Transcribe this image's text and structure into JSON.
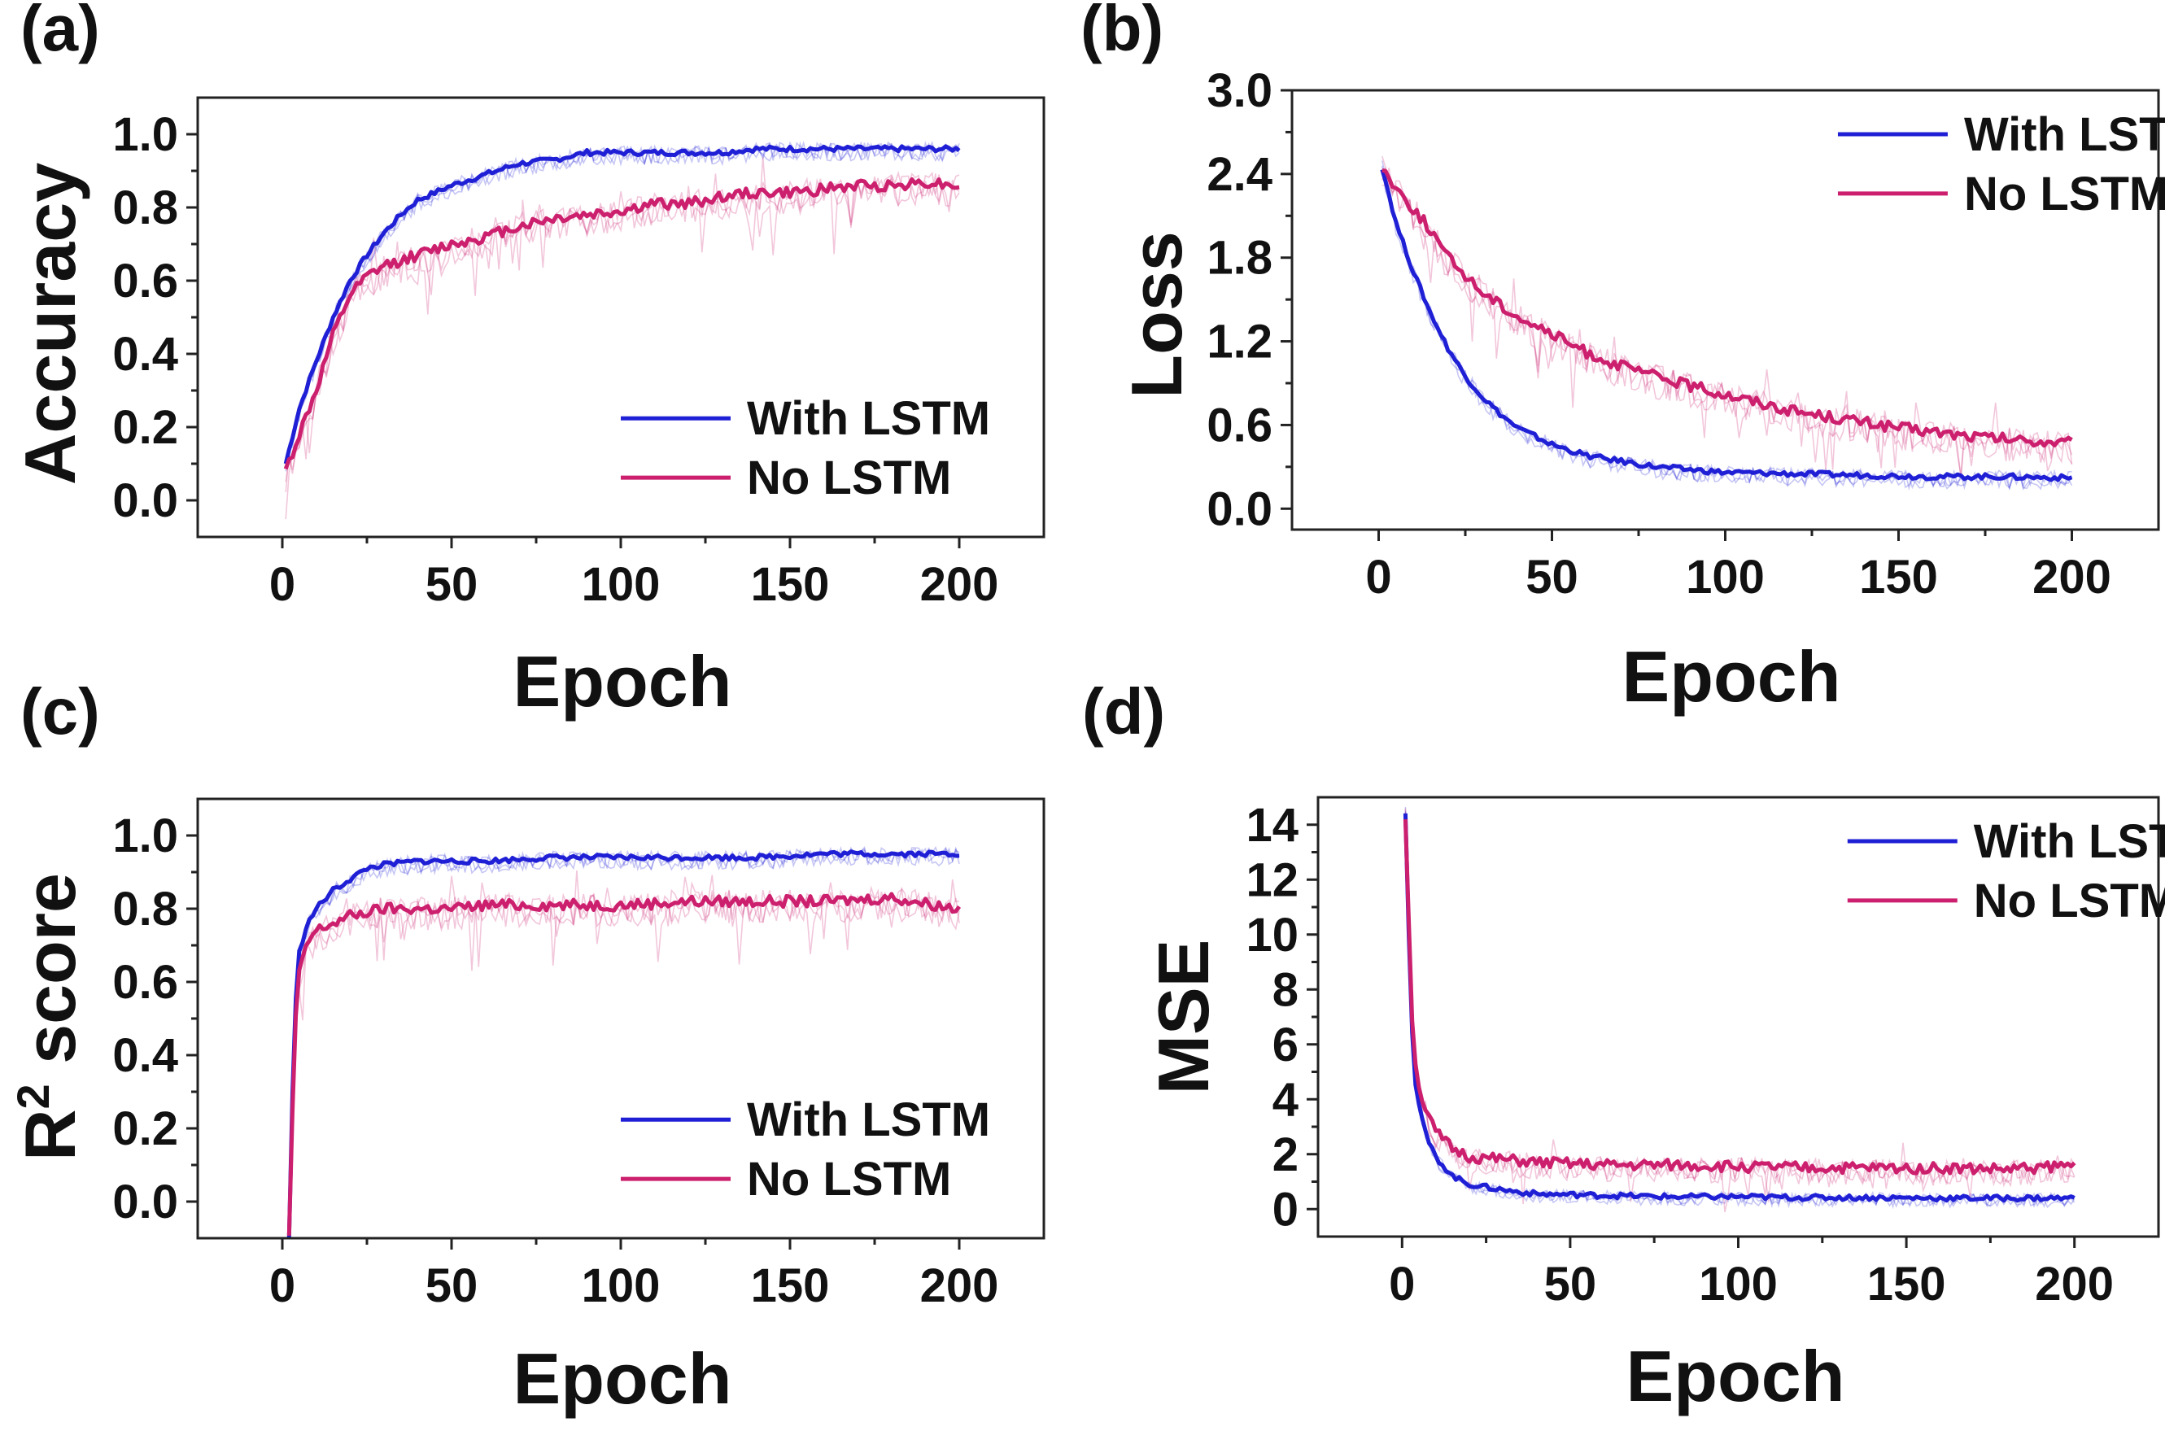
{
  "figure": {
    "colors": {
      "with_lstm": "#1f1fd6",
      "no_lstm": "#cc1f6e",
      "axis": "#222222"
    }
  },
  "chart_data": [
    {
      "id": "a",
      "type": "line",
      "panel_label": "(a)",
      "xlabel": "Epoch",
      "ylabel": "Accuracy",
      "xlim": [
        -25,
        225
      ],
      "ylim": [
        -0.1,
        1.1
      ],
      "xticks": [
        0,
        50,
        100,
        150,
        200
      ],
      "xtick_labels": [
        "0",
        "50",
        "100",
        "150",
        "200"
      ],
      "yticks": [
        0.0,
        0.2,
        0.4,
        0.6,
        0.8,
        1.0
      ],
      "ytick_labels": [
        "0.0",
        "0.2",
        "0.4",
        "0.6",
        "0.8",
        "1.0"
      ],
      "legend_position": "bottom-right",
      "series": [
        {
          "name": "With LSTM",
          "color": "#1f1fd6",
          "x": [
            1,
            5,
            10,
            15,
            20,
            25,
            30,
            35,
            40,
            50,
            60,
            70,
            80,
            90,
            100,
            110,
            120,
            130,
            140,
            150,
            160,
            170,
            180,
            190,
            200
          ],
          "y": [
            0.1,
            0.25,
            0.38,
            0.5,
            0.6,
            0.67,
            0.73,
            0.78,
            0.82,
            0.86,
            0.89,
            0.92,
            0.93,
            0.95,
            0.95,
            0.95,
            0.95,
            0.95,
            0.96,
            0.96,
            0.96,
            0.96,
            0.96,
            0.96,
            0.96
          ]
        },
        {
          "name": "No LSTM",
          "color": "#cc1f6e",
          "x": [
            1,
            5,
            10,
            15,
            20,
            25,
            30,
            40,
            50,
            60,
            70,
            80,
            90,
            100,
            110,
            120,
            130,
            140,
            150,
            160,
            170,
            180,
            190,
            200
          ],
          "y": [
            0.08,
            0.18,
            0.3,
            0.45,
            0.56,
            0.61,
            0.64,
            0.67,
            0.7,
            0.72,
            0.75,
            0.77,
            0.78,
            0.79,
            0.81,
            0.81,
            0.83,
            0.84,
            0.84,
            0.85,
            0.86,
            0.86,
            0.87,
            0.86
          ]
        }
      ]
    },
    {
      "id": "b",
      "type": "line",
      "panel_label": "(b)",
      "xlabel": "Epoch",
      "ylabel": "Loss",
      "xlim": [
        -25,
        225
      ],
      "ylim": [
        -0.15,
        3.0
      ],
      "xticks": [
        0,
        50,
        100,
        150,
        200
      ],
      "xtick_labels": [
        "0",
        "50",
        "100",
        "150",
        "200"
      ],
      "yticks": [
        0.0,
        0.6,
        1.2,
        1.8,
        2.4,
        3.0
      ],
      "ytick_labels": [
        "0.0",
        "0.6",
        "1.2",
        "1.8",
        "2.4",
        "3.0"
      ],
      "legend_position": "top-right",
      "series": [
        {
          "name": "With LSTM",
          "color": "#1f1fd6",
          "x": [
            1,
            5,
            10,
            15,
            20,
            25,
            30,
            35,
            40,
            50,
            60,
            70,
            80,
            90,
            100,
            120,
            140,
            160,
            180,
            200
          ],
          "y": [
            2.45,
            2.05,
            1.7,
            1.4,
            1.15,
            0.95,
            0.8,
            0.68,
            0.58,
            0.46,
            0.38,
            0.34,
            0.3,
            0.28,
            0.26,
            0.25,
            0.24,
            0.23,
            0.23,
            0.22
          ]
        },
        {
          "name": "No LSTM",
          "color": "#cc1f6e",
          "x": [
            1,
            5,
            10,
            15,
            20,
            30,
            40,
            50,
            60,
            70,
            80,
            90,
            100,
            110,
            120,
            130,
            140,
            150,
            160,
            170,
            180,
            190,
            200
          ],
          "y": [
            2.45,
            2.3,
            2.15,
            2.0,
            1.8,
            1.55,
            1.38,
            1.25,
            1.12,
            1.02,
            0.95,
            0.88,
            0.82,
            0.76,
            0.7,
            0.66,
            0.62,
            0.58,
            0.55,
            0.52,
            0.5,
            0.48,
            0.47
          ]
        }
      ]
    },
    {
      "id": "c",
      "type": "line",
      "panel_label": "(c)",
      "xlabel": "Epoch",
      "ylabel": "R² score",
      "ylabel_base": "R",
      "ylabel_sup": "2",
      "ylabel_rest": " score",
      "xlim": [
        -25,
        225
      ],
      "ylim": [
        -0.1,
        1.1
      ],
      "xticks": [
        0,
        50,
        100,
        150,
        200
      ],
      "xtick_labels": [
        "0",
        "50",
        "100",
        "150",
        "200"
      ],
      "yticks": [
        0.0,
        0.2,
        0.4,
        0.6,
        0.8,
        1.0
      ],
      "ytick_labels": [
        "0.0",
        "0.2",
        "0.4",
        "0.6",
        "0.8",
        "1.0"
      ],
      "legend_position": "bottom-right",
      "series": [
        {
          "name": "With LSTM",
          "color": "#1f1fd6",
          "x": [
            2,
            3,
            4,
            5,
            7,
            10,
            15,
            20,
            25,
            30,
            40,
            50,
            60,
            80,
            100,
            120,
            140,
            160,
            180,
            200
          ],
          "y": [
            -0.1,
            0.3,
            0.55,
            0.68,
            0.75,
            0.8,
            0.85,
            0.88,
            0.91,
            0.92,
            0.93,
            0.93,
            0.93,
            0.94,
            0.94,
            0.94,
            0.94,
            0.95,
            0.95,
            0.95
          ]
        },
        {
          "name": "No LSTM",
          "color": "#cc1f6e",
          "x": [
            2,
            3,
            4,
            5,
            7,
            10,
            15,
            20,
            30,
            40,
            50,
            60,
            80,
            100,
            120,
            140,
            160,
            180,
            200
          ],
          "y": [
            -0.1,
            0.25,
            0.5,
            0.62,
            0.7,
            0.74,
            0.76,
            0.78,
            0.8,
            0.8,
            0.8,
            0.81,
            0.81,
            0.81,
            0.82,
            0.82,
            0.82,
            0.83,
            0.8
          ]
        }
      ]
    },
    {
      "id": "d",
      "type": "line",
      "panel_label": "(d)",
      "xlabel": "Epoch",
      "ylabel": "MSE",
      "xlim": [
        -25,
        225
      ],
      "ylim": [
        -1,
        15
      ],
      "xticks": [
        0,
        50,
        100,
        150,
        200
      ],
      "xtick_labels": [
        "0",
        "50",
        "100",
        "150",
        "200"
      ],
      "yticks": [
        0,
        2,
        4,
        6,
        8,
        10,
        12,
        14
      ],
      "ytick_labels": [
        "0",
        "2",
        "4",
        "6",
        "8",
        "10",
        "12",
        "14"
      ],
      "legend_position": "top-right",
      "series": [
        {
          "name": "With LSTM",
          "color": "#1f1fd6",
          "x": [
            1,
            2,
            3,
            4,
            6,
            8,
            10,
            15,
            20,
            30,
            40,
            60,
            80,
            100,
            120,
            140,
            160,
            180,
            200
          ],
          "y": [
            14.5,
            10.0,
            6.5,
            4.5,
            3.2,
            2.4,
            1.9,
            1.2,
            0.9,
            0.7,
            0.55,
            0.5,
            0.45,
            0.45,
            0.42,
            0.42,
            0.4,
            0.4,
            0.4
          ]
        },
        {
          "name": "No LSTM",
          "color": "#cc1f6e",
          "x": [
            1,
            2,
            3,
            4,
            6,
            8,
            10,
            15,
            20,
            30,
            40,
            60,
            80,
            100,
            120,
            140,
            160,
            180,
            200
          ],
          "y": [
            14.3,
            10.5,
            7.0,
            5.2,
            4.0,
            3.3,
            2.8,
            2.2,
            1.9,
            1.8,
            1.7,
            1.6,
            1.6,
            1.55,
            1.5,
            1.5,
            1.5,
            1.45,
            1.6
          ]
        }
      ]
    }
  ]
}
